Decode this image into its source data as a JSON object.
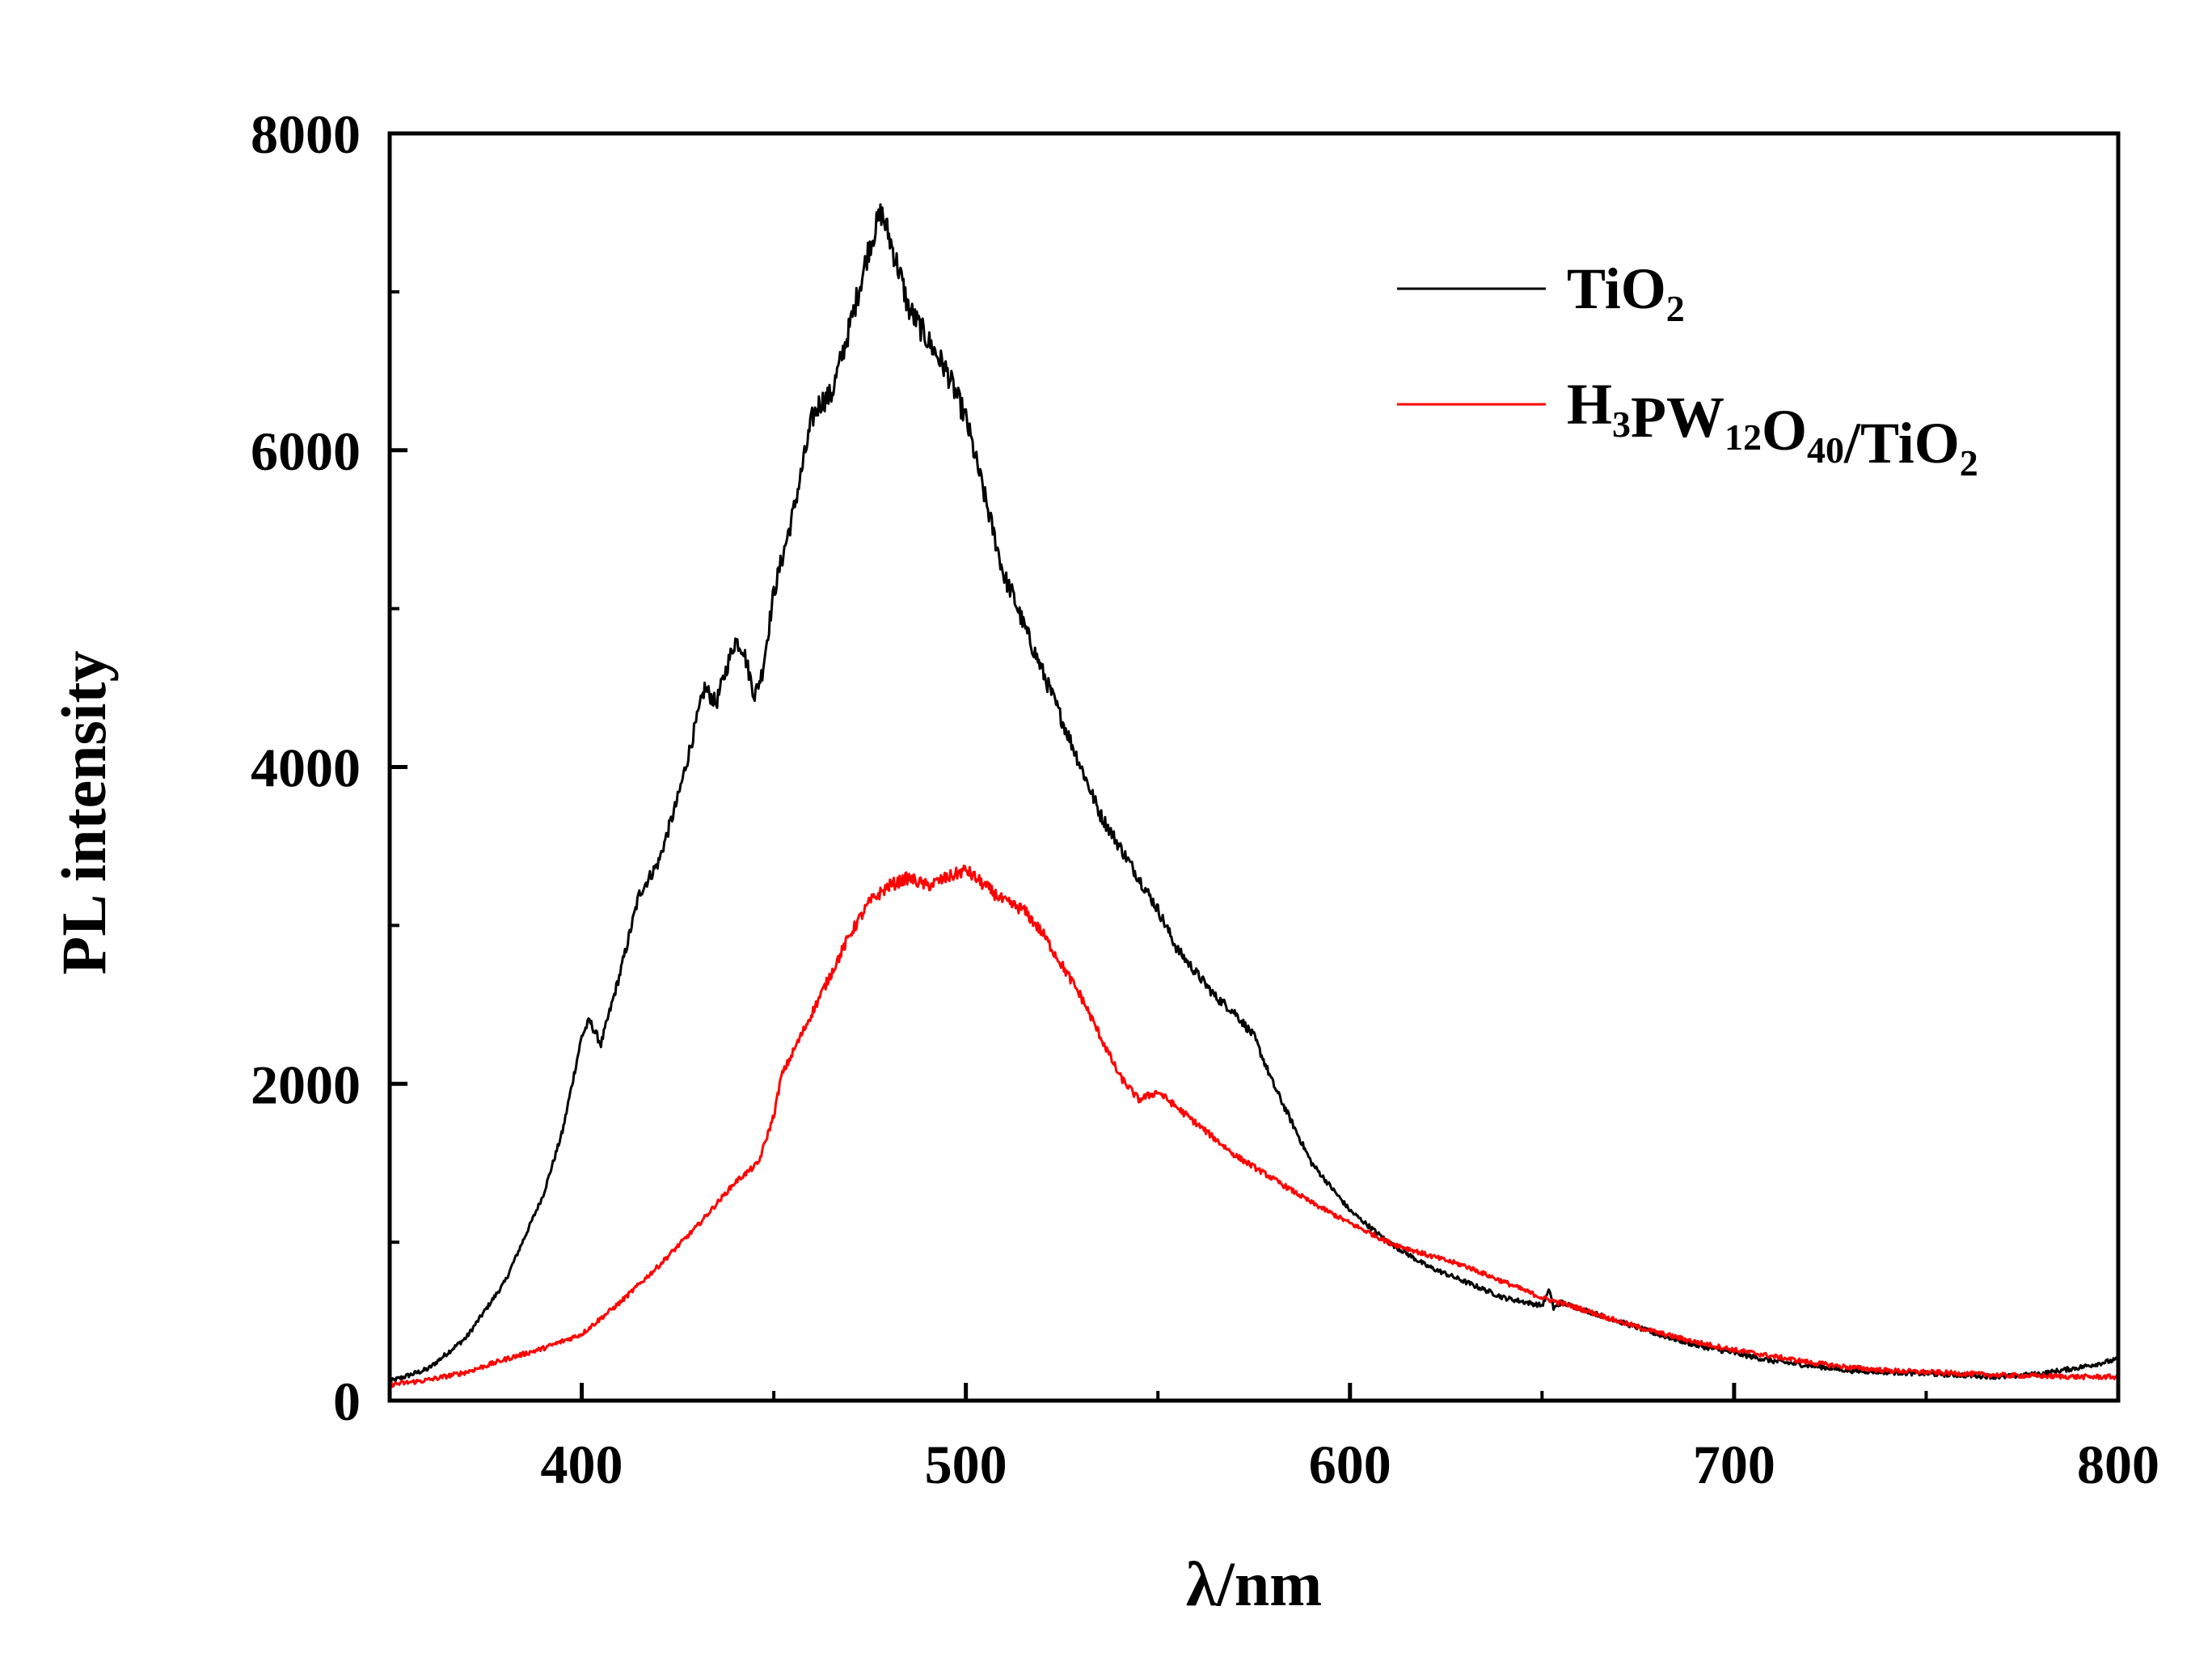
{
  "chart_data": {
    "type": "line",
    "title": "",
    "xlabel": "λ/nm",
    "ylabel": "PL intensity",
    "xlim": [
      350,
      800
    ],
    "ylim": [
      0,
      8000
    ],
    "xticks": [
      400,
      500,
      600,
      700,
      800
    ],
    "xtick_labels": [
      "400",
      "500",
      "600",
      "700",
      "800"
    ],
    "yticks": [
      0,
      2000,
      4000,
      6000,
      8000
    ],
    "ytick_labels": [
      "0",
      "2000",
      "4000",
      "6000",
      "8000"
    ],
    "grid": false,
    "legend_position": "top-right",
    "series": [
      {
        "name": "TiO2",
        "legend_parts": [
          {
            "t": "TiO",
            "sub": false
          },
          {
            "t": "2",
            "sub": true
          }
        ],
        "color": "#000000",
        "x": [
          350,
          360,
          370,
          380,
          390,
          395,
          400,
          402,
          405,
          410,
          415,
          420,
          425,
          430,
          432,
          435,
          438,
          440,
          442,
          445,
          447,
          450,
          455,
          460,
          462,
          465,
          470,
          475,
          478,
          480,
          483,
          485,
          490,
          495,
          500,
          505,
          510,
          512,
          515,
          520,
          525,
          530,
          535,
          540,
          545,
          550,
          555,
          560,
          565,
          570,
          575,
          580,
          585,
          590,
          595,
          600,
          605,
          610,
          620,
          630,
          640,
          650,
          652,
          653,
          655,
          660,
          670,
          680,
          690,
          700,
          710,
          720,
          730,
          740,
          750,
          760,
          770,
          780,
          790,
          800
        ],
        "y": [
          120,
          200,
          400,
          750,
          1300,
          1700,
          2300,
          2400,
          2250,
          2700,
          3200,
          3400,
          3800,
          4300,
          4500,
          4400,
          4650,
          4800,
          4750,
          4450,
          4600,
          5100,
          5600,
          6200,
          6300,
          6350,
          6800,
          7300,
          7500,
          7350,
          7100,
          6900,
          6700,
          6500,
          6200,
          5700,
          5200,
          5100,
          4900,
          4600,
          4300,
          4000,
          3700,
          3500,
          3300,
          3100,
          2850,
          2700,
          2550,
          2450,
          2300,
          2000,
          1750,
          1500,
          1350,
          1200,
          1100,
          1000,
          850,
          750,
          650,
          600,
          700,
          580,
          620,
          580,
          500,
          420,
          350,
          300,
          250,
          220,
          190,
          180,
          170,
          160,
          150,
          170,
          210,
          260
        ]
      },
      {
        "name": "H3PW12O40/TiO2",
        "legend_parts": [
          {
            "t": "H",
            "sub": false
          },
          {
            "t": "3",
            "sub": true
          },
          {
            "t": "PW",
            "sub": false
          },
          {
            "t": "12",
            "sub": true
          },
          {
            "t": "O",
            "sub": false
          },
          {
            "t": "40",
            "sub": true
          },
          {
            "t": "/TiO",
            "sub": false
          },
          {
            "t": "2",
            "sub": true
          }
        ],
        "color": "#ff0000",
        "x": [
          350,
          360,
          370,
          380,
          390,
          400,
          410,
          420,
          430,
          440,
          446,
          450,
          452,
          455,
          460,
          465,
          470,
          475,
          480,
          485,
          490,
          495,
          500,
          505,
          510,
          515,
          520,
          525,
          530,
          535,
          540,
          545,
          550,
          555,
          560,
          565,
          570,
          580,
          590,
          600,
          610,
          620,
          630,
          640,
          650,
          660,
          670,
          680,
          690,
          700,
          710,
          720,
          730,
          740,
          750,
          760,
          770,
          780,
          790,
          800
        ],
        "y": [
          100,
          130,
          180,
          260,
          330,
          420,
          620,
          850,
          1100,
          1380,
          1500,
          1800,
          2050,
          2200,
          2450,
          2700,
          2950,
          3150,
          3250,
          3300,
          3250,
          3300,
          3350,
          3250,
          3150,
          3100,
          2950,
          2750,
          2550,
          2300,
          2050,
          1900,
          1950,
          1850,
          1750,
          1650,
          1550,
          1400,
          1250,
          1120,
          1000,
          920,
          850,
          750,
          650,
          580,
          500,
          430,
          370,
          320,
          280,
          240,
          210,
          190,
          180,
          170,
          160,
          155,
          150,
          150
        ]
      }
    ]
  }
}
